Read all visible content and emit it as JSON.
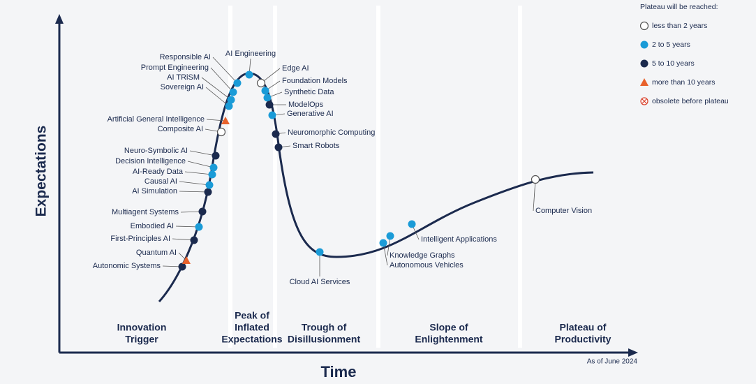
{
  "axes": {
    "y_label": "Expectations",
    "x_label": "Time"
  },
  "note": "As of June 2024",
  "legend": {
    "title": "Plateau will be reached:",
    "items": [
      "less than 2 years",
      "2 to 5 years",
      "5 to 10 years",
      "more than 10 years",
      "obsolete before plateau"
    ]
  },
  "phases": [
    [
      "Innovation",
      "Trigger"
    ],
    [
      "Peak of",
      "Inflated",
      "Expectations"
    ],
    [
      "Trough of",
      "Disillusionment"
    ],
    [
      "Slope of",
      "Enlightenment"
    ],
    [
      "Plateau of",
      "Productivity"
    ]
  ],
  "technologies": [
    {
      "label": "Autonomic Systems",
      "plateau": "5 to 10 years"
    },
    {
      "label": "Quantum AI",
      "plateau": "more than 10 years"
    },
    {
      "label": "First-Principles AI",
      "plateau": "5 to 10 years"
    },
    {
      "label": "Embodied AI",
      "plateau": "2 to 5 years"
    },
    {
      "label": "Multiagent Systems",
      "plateau": "5 to 10 years"
    },
    {
      "label": "AI Simulation",
      "plateau": "5 to 10 years"
    },
    {
      "label": "Causal AI",
      "plateau": "2 to 5 years"
    },
    {
      "label": "AI-Ready Data",
      "plateau": "2 to 5 years"
    },
    {
      "label": "Decision Intelligence",
      "plateau": "2 to 5 years"
    },
    {
      "label": "Neuro-Symbolic AI",
      "plateau": "5 to 10 years"
    },
    {
      "label": "Composite AI",
      "plateau": "less than 2 years"
    },
    {
      "label": "Artificial General Intelligence",
      "plateau": "more than 10 years"
    },
    {
      "label": "Sovereign AI",
      "plateau": "2 to 5 years"
    },
    {
      "label": "AI TRiSM",
      "plateau": "2 to 5 years"
    },
    {
      "label": "Prompt Engineering",
      "plateau": "2 to 5 years"
    },
    {
      "label": "Responsible AI",
      "plateau": "2 to 5 years"
    },
    {
      "label": "AI Engineering",
      "plateau": "2 to 5 years"
    },
    {
      "label": "Edge AI",
      "plateau": "less than 2 years"
    },
    {
      "label": "Foundation Models",
      "plateau": "2 to 5 years"
    },
    {
      "label": "Synthetic Data",
      "plateau": "2 to 5 years"
    },
    {
      "label": "ModelOps",
      "plateau": "5 to 10 years"
    },
    {
      "label": "Generative AI",
      "plateau": "2 to 5 years"
    },
    {
      "label": "Neuromorphic Computing",
      "plateau": "5 to 10 years"
    },
    {
      "label": "Smart Robots",
      "plateau": "5 to 10 years"
    },
    {
      "label": "Cloud AI Services",
      "plateau": "2 to 5 years"
    },
    {
      "label": "Autonomous Vehicles",
      "plateau": "2 to 5 years"
    },
    {
      "label": "Knowledge Graphs",
      "plateau": "2 to 5 years"
    },
    {
      "label": "Intelligent Applications",
      "plateau": "2 to 5 years"
    },
    {
      "label": "Computer Vision",
      "plateau": "less than 2 years"
    }
  ]
}
